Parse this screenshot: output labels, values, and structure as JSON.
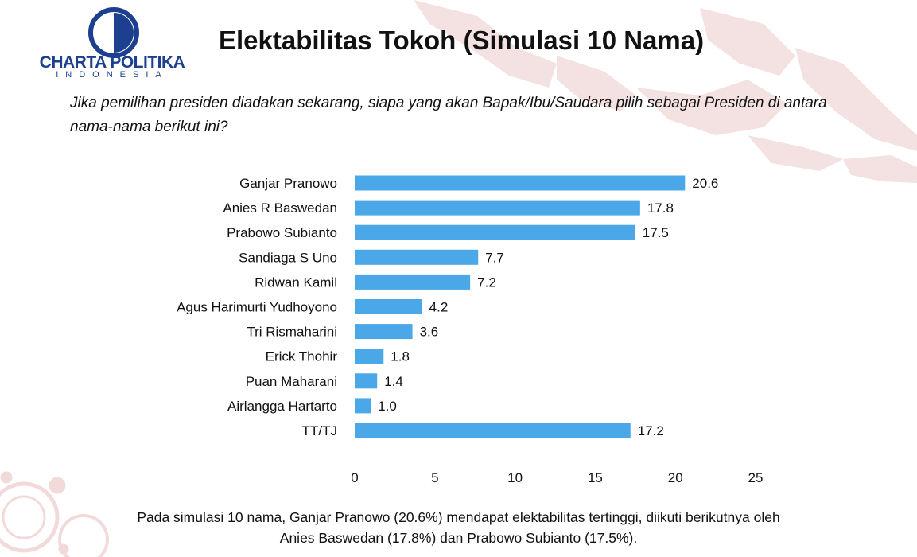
{
  "colors": {
    "bar": "#4aa8e8",
    "map": "#f3dede",
    "logo": "#1d3f8f",
    "virus": "#f0d2d2"
  },
  "logo": {
    "name": "CHARTA POLITIKA",
    "sub": "INDONESIA"
  },
  "title": "Elektabilitas Tokoh (Simulasi 10 Nama)",
  "question": "Jika pemilihan presiden diadakan sekarang, siapa yang akan Bapak/Ibu/Saudara pilih sebagai Presiden di antara nama-nama berikut ini?",
  "footnote": {
    "line1": "Pada simulasi 10 nama, Ganjar Pranowo (20.6%) mendapat elektabilitas tertinggi, diikuti berikutnya oleh",
    "line2": "Anies Baswedan (17.8%) dan Prabowo Subianto (17.5%)."
  },
  "chart_data": {
    "type": "bar",
    "orientation": "horizontal",
    "categories": [
      "Ganjar Pranowo",
      "Anies R Baswedan",
      "Prabowo Subianto",
      "Sandiaga S Uno",
      "Ridwan Kamil",
      "Agus Harimurti Yudhoyono",
      "Tri Rismaharini",
      "Erick Thohir",
      "Puan Maharani",
      "Airlangga Hartarto",
      "TT/TJ"
    ],
    "values": [
      20.6,
      17.8,
      17.5,
      7.7,
      7.2,
      4.2,
      3.6,
      1.8,
      1.4,
      1.0,
      17.2
    ],
    "value_labels": [
      "20.6",
      "17.8",
      "17.5",
      "7.7",
      "7.2",
      "4.2",
      "3.6",
      "1.8",
      "1.4",
      "1.0",
      "17.2"
    ],
    "xlim": [
      0,
      25
    ],
    "xticks": [
      0,
      5,
      10,
      15,
      20,
      25
    ],
    "title": "Elektabilitas Tokoh (Simulasi 10 Nama)",
    "xlabel": "",
    "ylabel": "",
    "grid": false,
    "legend": "none"
  }
}
